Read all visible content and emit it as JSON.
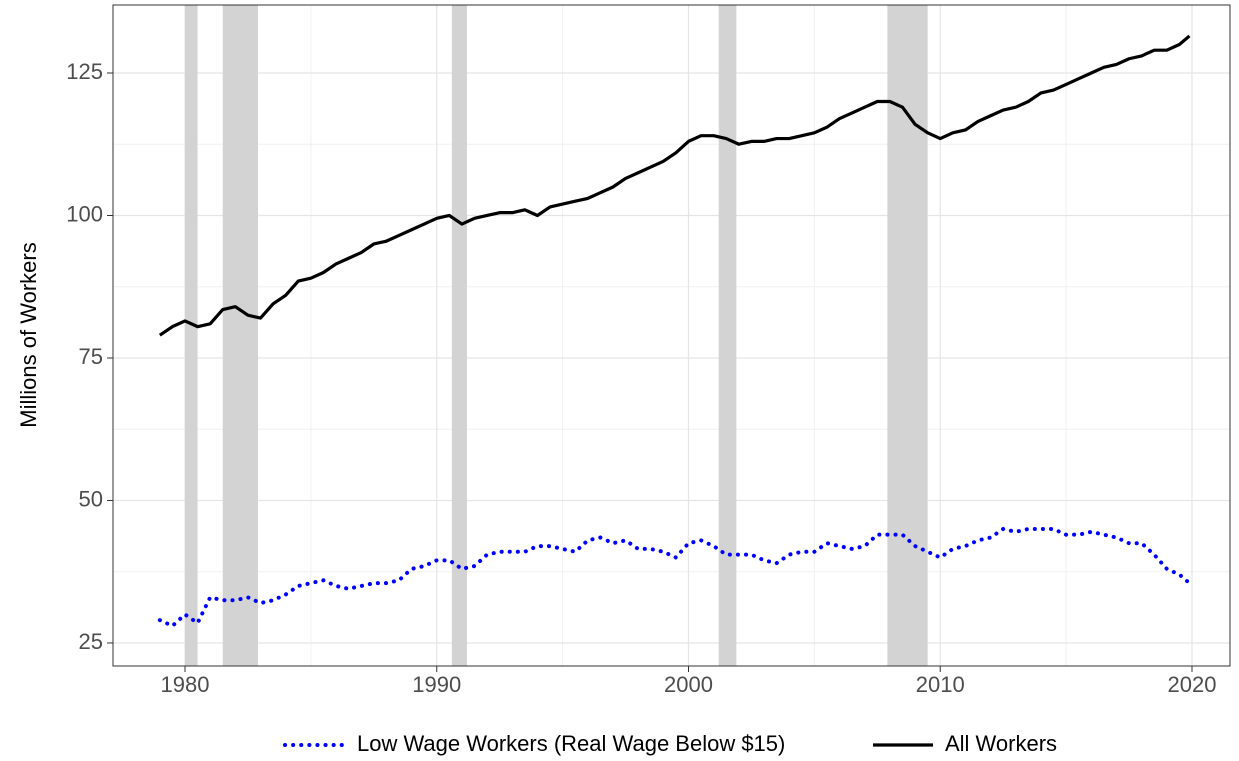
{
  "chart_data": {
    "type": "line",
    "y_label": "Millions of Workers",
    "x": [
      1979.0,
      1979.5,
      1980.0,
      1980.5,
      1981.0,
      1981.5,
      1982.0,
      1982.5,
      1983.0,
      1983.5,
      1984.0,
      1984.5,
      1985.0,
      1985.5,
      1986.0,
      1986.5,
      1987.0,
      1987.5,
      1988.0,
      1988.5,
      1989.0,
      1989.5,
      1990.0,
      1990.5,
      1991.0,
      1991.5,
      1992.0,
      1992.5,
      1993.0,
      1993.5,
      1994.0,
      1994.5,
      1995.0,
      1995.5,
      1996.0,
      1996.5,
      1997.0,
      1997.5,
      1998.0,
      1998.5,
      1999.0,
      1999.5,
      2000.0,
      2000.5,
      2001.0,
      2001.5,
      2002.0,
      2002.5,
      2003.0,
      2003.5,
      2004.0,
      2004.5,
      2005.0,
      2005.5,
      2006.0,
      2006.5,
      2007.0,
      2007.5,
      2008.0,
      2008.5,
      2009.0,
      2009.5,
      2010.0,
      2010.5,
      2011.0,
      2011.5,
      2012.0,
      2012.5,
      2013.0,
      2013.5,
      2014.0,
      2014.5,
      2015.0,
      2015.5,
      2016.0,
      2016.5,
      2017.0,
      2017.5,
      2018.0,
      2018.5,
      2019.0,
      2019.5,
      2019.9
    ],
    "series": [
      {
        "name": "Low Wage Workers (Real Wage Below $15)",
        "color": "#0000ff",
        "line_style": "dotted",
        "values": [
          29,
          28,
          30,
          28.5,
          33,
          32.5,
          32.5,
          33,
          32,
          32.5,
          33.5,
          35,
          35.5,
          36,
          35,
          34.5,
          35,
          35.5,
          35.5,
          36,
          38,
          38.5,
          39.5,
          39.5,
          38,
          38.5,
          40.5,
          41,
          41,
          41,
          42,
          42,
          41.5,
          41,
          43,
          43.5,
          42.5,
          43,
          41.5,
          41.5,
          41,
          40,
          42.5,
          43,
          42,
          40.5,
          40.5,
          40.5,
          39.5,
          39,
          40.5,
          41,
          41,
          42.5,
          42,
          41.5,
          42,
          44,
          44,
          44,
          42,
          41,
          40,
          41.5,
          42,
          43,
          43.5,
          45,
          44.5,
          45,
          45,
          45,
          44,
          44,
          44.5,
          44,
          43.5,
          42.5,
          42.5,
          40.5,
          38,
          37,
          35.5
        ]
      },
      {
        "name": "All Workers",
        "color": "#000000",
        "line_style": "solid",
        "values": [
          79,
          80.5,
          81.5,
          80.5,
          81,
          83.5,
          84,
          82.5,
          82,
          84.5,
          86,
          88.5,
          89,
          90,
          91.5,
          92.5,
          93.5,
          95,
          95.5,
          96.5,
          97.5,
          98.5,
          99.5,
          100,
          98.5,
          99.5,
          100,
          100.5,
          100.5,
          101,
          100,
          101.5,
          102,
          102.5,
          103,
          104,
          105,
          106.5,
          107.5,
          108.5,
          109.5,
          111,
          113,
          114,
          114,
          113.5,
          112.5,
          113,
          113,
          113.5,
          113.5,
          114,
          114.5,
          115.5,
          117,
          118,
          119,
          120,
          120,
          119,
          116,
          114.5,
          113.5,
          114.5,
          115,
          116.5,
          117.5,
          118.5,
          119,
          120,
          121.5,
          122,
          123,
          124,
          125,
          126,
          126.5,
          127.5,
          128,
          129,
          129,
          130,
          131.5
        ]
      }
    ],
    "recessions": [
      [
        1980.0,
        1980.5
      ],
      [
        1981.5,
        1982.9
      ],
      [
        1990.6,
        1991.2
      ],
      [
        2001.2,
        2001.9
      ],
      [
        2007.9,
        2009.5
      ]
    ],
    "recession_color": "#d3d3d3",
    "xlim": [
      1977.14,
      2021.51
    ],
    "xticks": [
      1980,
      1990,
      2000,
      2010,
      2020
    ],
    "ylim": [
      20.96,
      136.93
    ],
    "yticks": [
      25,
      50,
      75,
      100,
      125
    ],
    "grid": true,
    "legend": "bottom"
  }
}
